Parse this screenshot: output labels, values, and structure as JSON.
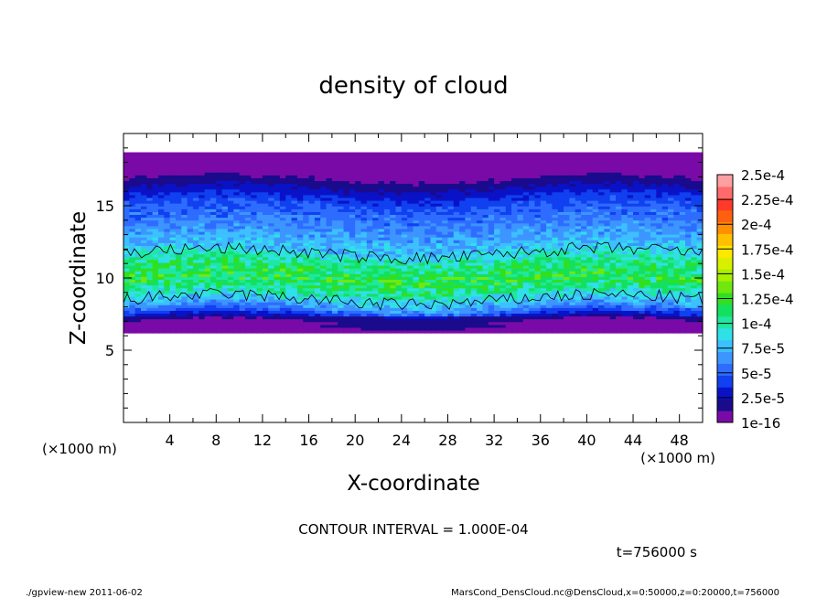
{
  "chart_data": {
    "type": "heatmap",
    "title": "density of cloud",
    "xlabel": "X-coordinate",
    "ylabel": "Z-coordinate",
    "x_unit_left": "(×1000 m)",
    "x_unit_right": "(×1000 m)",
    "xlim": [
      0,
      50
    ],
    "ylim": [
      0,
      20
    ],
    "x_ticks": [
      4,
      8,
      12,
      16,
      20,
      24,
      28,
      32,
      36,
      40,
      44,
      48
    ],
    "y_ticks": [
      5,
      10,
      15
    ],
    "colorbar": {
      "labels": [
        "2.5e-4",
        "2.25e-4",
        "2e-4",
        "1.75e-4",
        "1.5e-4",
        "1.25e-4",
        "1e-4",
        "7.5e-5",
        "5e-5",
        "2.5e-5",
        "1e-16"
      ],
      "levels": [
        1e-16,
        1.25e-05,
        2.5e-05,
        3.75e-05,
        5e-05,
        6.25e-05,
        7.5e-05,
        8.75e-05,
        0.0001,
        0.0001125,
        0.000125,
        0.0001375,
        0.00015,
        0.0001625,
        0.000175,
        0.0001875,
        0.0002,
        0.0002125,
        0.000225,
        0.0002375,
        0.00025
      ],
      "colors": [
        "#7a0aa8",
        "#1a0a8c",
        "#0a12c8",
        "#1040f0",
        "#2e6cff",
        "#3d95ff",
        "#3cc0ff",
        "#30e0e8",
        "#1ee8a0",
        "#14e060",
        "#30e020",
        "#70e810",
        "#a8f000",
        "#d8f000",
        "#ffe800",
        "#ffc000",
        "#ff9000",
        "#ff6010",
        "#ff3a2a",
        "#ff6a6a",
        "#ffa0a0"
      ]
    },
    "cloud_profile": [
      {
        "z": 6.3,
        "value": 1e-16
      },
      {
        "z": 6.8,
        "value": 1.5e-05
      },
      {
        "z": 7.3,
        "value": 3e-05
      },
      {
        "z": 8.0,
        "value": 7e-05
      },
      {
        "z": 9.0,
        "value": 0.000105
      },
      {
        "z": 10.0,
        "value": 0.000125
      },
      {
        "z": 11.0,
        "value": 0.00011
      },
      {
        "z": 12.0,
        "value": 8.5e-05
      },
      {
        "z": 13.5,
        "value": 6.5e-05
      },
      {
        "z": 15.0,
        "value": 5e-05
      },
      {
        "z": 16.0,
        "value": 3e-05
      },
      {
        "z": 16.7,
        "value": 1.5e-05
      },
      {
        "z": 17.5,
        "value": 5e-06
      },
      {
        "z": 18.7,
        "value": 1e-16
      }
    ],
    "cloud_bounds_z": [
      6.2,
      18.7
    ],
    "contour_levels": [
      0.0001
    ],
    "annotations": {
      "contour_interval": "CONTOUR INTERVAL = 1.000E-04",
      "time": "t=756000 s"
    },
    "grid": false
  },
  "footer": {
    "left": "./gpview-new  2011-06-02",
    "right": "MarsCond_DensCloud.nc@DensCloud,x=0:50000,z=0:20000,t=756000"
  }
}
